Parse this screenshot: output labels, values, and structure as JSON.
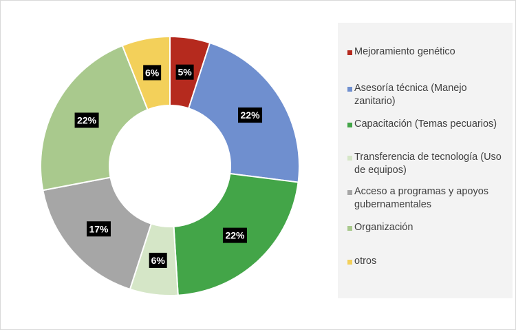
{
  "chart_data": {
    "type": "pie",
    "donut": true,
    "title": "",
    "legend_position": "right",
    "slices": [
      {
        "label": "Mejoramiento genético",
        "value": 5,
        "display": "5%",
        "color": "#b52a1e"
      },
      {
        "label": "Asesoría técnica (Manejo zanitario)",
        "value": 22,
        "display": "22%",
        "color": "#6f8fcf"
      },
      {
        "label": "Capacitación (Temas pecuarios)",
        "value": 22,
        "display": "22%",
        "color": "#43a548"
      },
      {
        "label": "Transferencia de tecnología (Uso de equipos)",
        "value": 6,
        "display": "6%",
        "color": "#d5e6c7"
      },
      {
        "label": "Acceso a programas y apoyos gubernamentales",
        "value": 17,
        "display": "17%",
        "color": "#a6a6a6"
      },
      {
        "label": "Organización",
        "value": 22,
        "display": "22%",
        "color": "#a9c98d"
      },
      {
        "label": "otros",
        "value": 6,
        "display": "6%",
        "color": "#f3d05a"
      }
    ]
  }
}
